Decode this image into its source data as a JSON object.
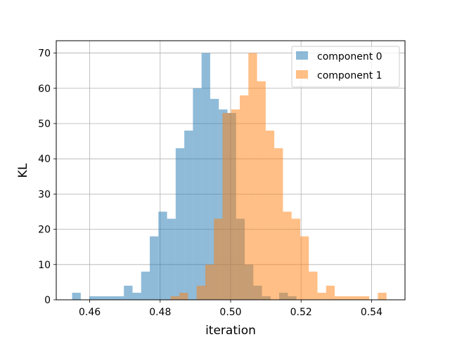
{
  "chart_data": {
    "type": "histogram",
    "title": "",
    "xlabel": "iteration",
    "ylabel": "KL",
    "xlim": [
      0.4505,
      0.5495
    ],
    "ylim": [
      0,
      73.5
    ],
    "xticks": [
      0.46,
      0.48,
      0.5,
      0.52,
      0.54
    ],
    "xtick_labels": [
      "0.46",
      "0.48",
      "0.50",
      "0.52",
      "0.54"
    ],
    "yticks": [
      0,
      10,
      20,
      30,
      40,
      50,
      60,
      70
    ],
    "ytick_labels": [
      "0",
      "10",
      "20",
      "30",
      "40",
      "50",
      "60",
      "70"
    ],
    "grid": true,
    "legend_position": "top-right",
    "series": [
      {
        "name": "component 0",
        "color": "#1f77b4",
        "alpha": 0.5,
        "bin_width": 0.00245,
        "bin_start": 0.455,
        "counts": [
          2,
          0,
          1,
          1,
          1,
          1,
          4,
          2,
          8,
          18,
          25,
          23,
          43,
          48,
          60,
          70,
          57,
          54,
          53,
          23,
          10,
          4,
          1,
          0,
          2,
          1
        ]
      },
      {
        "name": "component 1",
        "color": "#ff7f0e",
        "alpha": 0.5,
        "bin_width": 0.00245,
        "bin_start": 0.483,
        "counts": [
          1,
          2,
          0,
          4,
          10,
          23,
          53,
          54,
          58,
          70,
          62,
          48,
          43,
          25,
          23,
          18,
          8,
          2,
          4,
          1,
          1,
          1,
          1,
          0,
          2
        ]
      }
    ]
  }
}
